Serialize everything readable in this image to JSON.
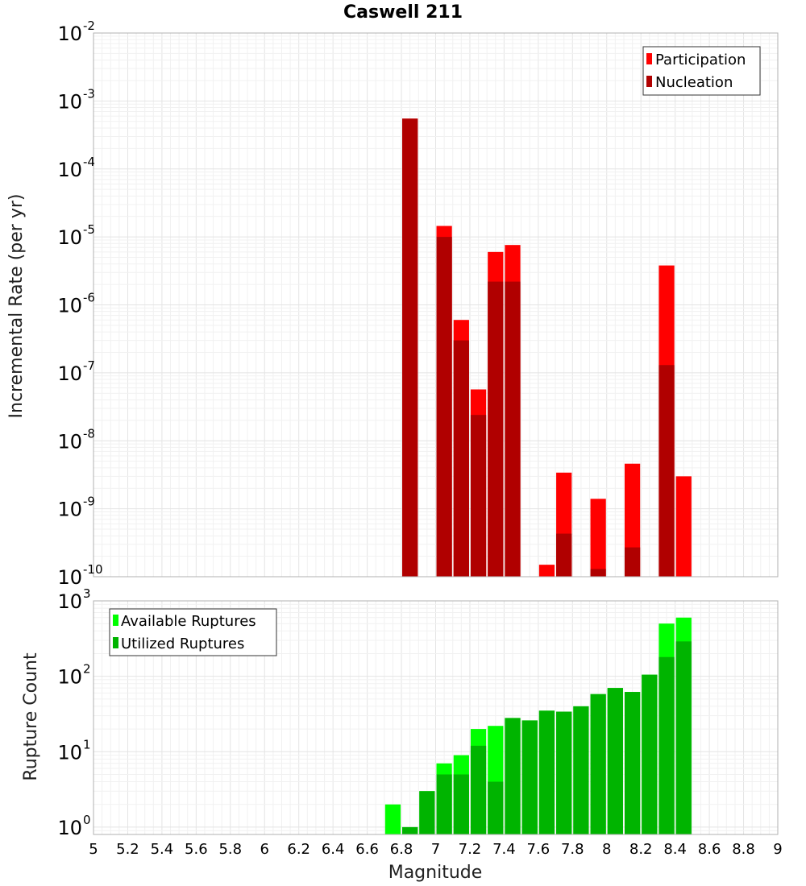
{
  "chart_data": [
    {
      "type": "bar",
      "title": "Caswell 211",
      "ylabel": "Incremental Rate (per yr)",
      "xlabel": "",
      "xlim": [
        5,
        9
      ],
      "yscale": "log",
      "ylim_exp": [
        -10,
        -2
      ],
      "y_tick_base": "10",
      "y_tick_exponents": [
        "-2",
        "-3",
        "-4",
        "-5",
        "-6",
        "-7",
        "-8",
        "-9",
        "-10"
      ],
      "grid": true,
      "legend_position": "top-right",
      "legend": [
        {
          "label": "Participation",
          "color": "#ff0000"
        },
        {
          "label": "Nucleation",
          "color": "#b00000"
        }
      ],
      "bin_width": 0.1,
      "series": [
        {
          "name": "Participation",
          "color": "#ff0000",
          "x": [
            6.85,
            7.05,
            7.15,
            7.25,
            7.35,
            7.45,
            7.65,
            7.75,
            7.95,
            8.15,
            8.35,
            8.45
          ],
          "values": [
            0.00055,
            1.45e-05,
            6e-07,
            5.7e-08,
            6e-06,
            7.6e-06,
            1.5e-10,
            3.4e-09,
            1.4e-09,
            4.6e-09,
            3.8e-06,
            3e-09
          ]
        },
        {
          "name": "Nucleation",
          "color": "#b00000",
          "x": [
            6.85,
            7.05,
            7.15,
            7.25,
            7.35,
            7.45,
            7.75,
            7.95,
            8.15,
            8.35
          ],
          "values": [
            0.00055,
            1e-05,
            3e-07,
            2.4e-08,
            2.2e-06,
            2.2e-06,
            4.3e-10,
            1.3e-10,
            2.7e-10,
            1.3e-07
          ]
        }
      ]
    },
    {
      "type": "bar",
      "title": "",
      "ylabel": "Rupture Count",
      "xlabel": "Magnitude",
      "xlim": [
        5,
        9
      ],
      "x_ticks": [
        "5",
        "5.2",
        "5.4",
        "5.6",
        "5.8",
        "6",
        "6.2",
        "6.4",
        "6.6",
        "6.8",
        "7",
        "7.2",
        "7.4",
        "7.6",
        "7.8",
        "8",
        "8.2",
        "8.4",
        "8.6",
        "8.8",
        "9"
      ],
      "yscale": "log",
      "ylim": [
        0.8,
        1000
      ],
      "y_tick_base": "10",
      "y_tick_exponents": [
        "3",
        "2",
        "1",
        "0"
      ],
      "grid": true,
      "legend_position": "top-left",
      "legend": [
        {
          "label": "Available Ruptures",
          "color": "#00ff00"
        },
        {
          "label": "Utilized Ruptures",
          "color": "#00b400"
        }
      ],
      "bin_width": 0.1,
      "series": [
        {
          "name": "Available Ruptures",
          "color": "#00ff00",
          "x": [
            6.75,
            6.85,
            6.95,
            7.05,
            7.15,
            7.25,
            7.35,
            7.45,
            7.55,
            7.65,
            7.75,
            7.85,
            7.95,
            8.05,
            8.15,
            8.25,
            8.35,
            8.45
          ],
          "values": [
            2,
            1,
            3,
            7,
            9,
            20,
            22,
            28,
            26,
            35,
            34,
            40,
            58,
            70,
            62,
            105,
            500,
            600
          ]
        },
        {
          "name": "Utilized Ruptures",
          "color": "#00b400",
          "x": [
            6.85,
            6.95,
            7.05,
            7.15,
            7.25,
            7.35,
            7.45,
            7.55,
            7.65,
            7.75,
            7.85,
            7.95,
            8.05,
            8.15,
            8.25,
            8.35,
            8.45
          ],
          "values": [
            1,
            3,
            5,
            5,
            12,
            4,
            28,
            26,
            35,
            34,
            40,
            58,
            70,
            62,
            105,
            180,
            290
          ]
        }
      ]
    }
  ]
}
